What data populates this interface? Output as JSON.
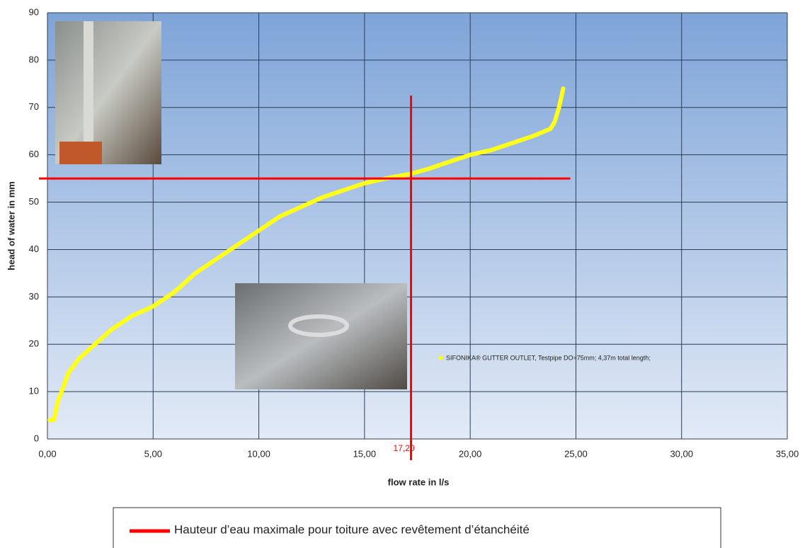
{
  "chart_data": {
    "type": "line",
    "x_label": "flow rate in l/s",
    "y_label": "head of water in mm",
    "xlim": [
      0,
      35
    ],
    "ylim": [
      0,
      90
    ],
    "xticks": [
      {
        "value": 0,
        "label": "0,00"
      },
      {
        "value": 5,
        "label": "5,00"
      },
      {
        "value": 10,
        "label": "10,00"
      },
      {
        "value": 15,
        "label": "15,00"
      },
      {
        "value": 20,
        "label": "20,00"
      },
      {
        "value": 25,
        "label": "25,00"
      },
      {
        "value": 30,
        "label": "30,00"
      },
      {
        "value": 35,
        "label": "35,00"
      }
    ],
    "yticks": [
      0,
      10,
      20,
      30,
      40,
      50,
      60,
      70,
      80,
      90
    ],
    "grid": true,
    "series": [
      {
        "name": "SIFONIKA® GUTTER OUTLET, Testpipe DO=75mm; 4,37m total length;",
        "color": "#ffff1a",
        "x": [
          0.1,
          0.3,
          0.5,
          1,
          1.5,
          2,
          3,
          4,
          5,
          6,
          7,
          8,
          9,
          10,
          11,
          12,
          13,
          14,
          15,
          16,
          17.2,
          18,
          19,
          20,
          21,
          22,
          23,
          23.8,
          24,
          24.2,
          24.4
        ],
        "values": [
          4,
          4,
          8,
          14,
          17,
          19,
          23,
          26,
          28,
          31,
          35,
          38,
          41,
          44,
          47,
          49,
          51,
          52.5,
          54,
          55,
          56,
          57,
          58.5,
          60,
          61,
          62.5,
          64,
          65.5,
          67,
          70,
          74
        ]
      }
    ],
    "markers": [
      {
        "name": "Hauteur d’eau maximale pour toiture avec revêtement d’étanchéité",
        "color": "#ff0000",
        "y": 55,
        "x": {
          "value": 17.2,
          "label": "17,20"
        }
      }
    ]
  }
}
